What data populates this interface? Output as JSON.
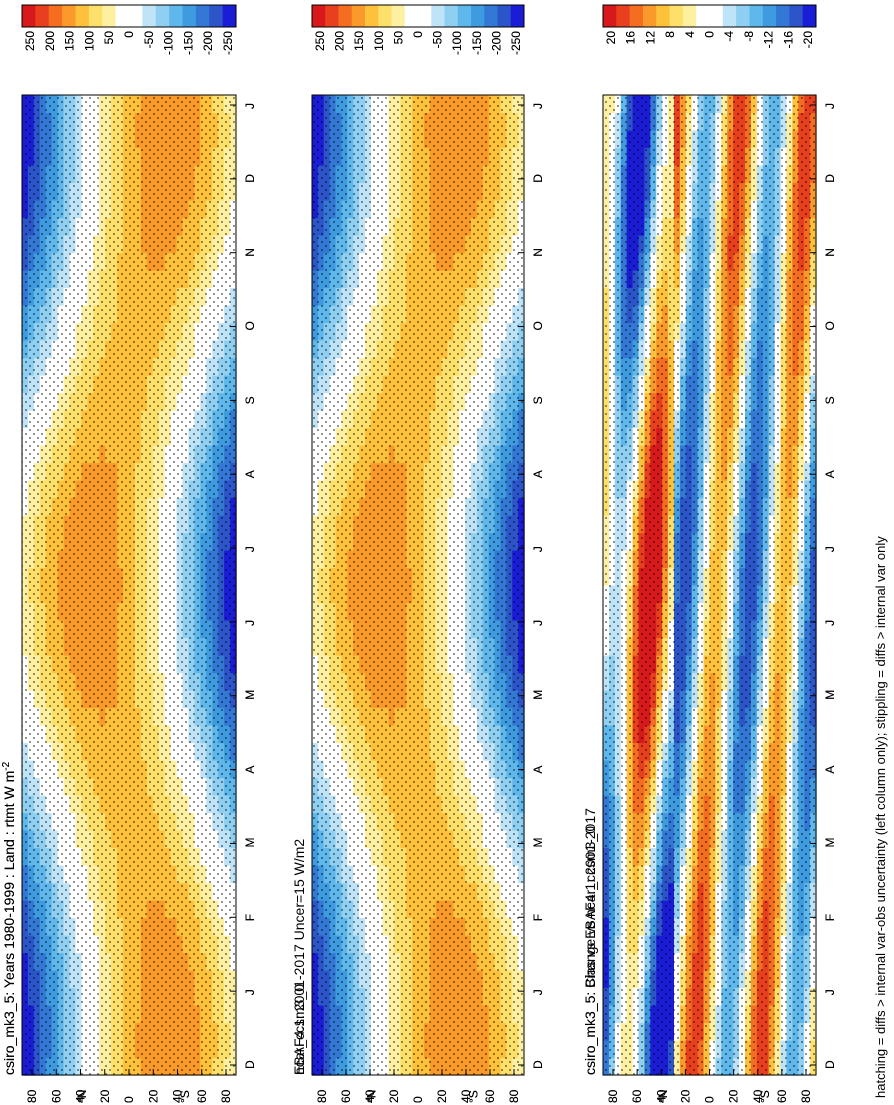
{
  "footnote": "hatching = diffs > internal var-obs uncertainty (left column only); stippling = diffs > internal var only",
  "chart_data": [
    {
      "id": "p1",
      "type": "heatmap",
      "title": "csiro_mk3_5: Years 1980-1999 : Land : rtmt W m",
      "title_sup": "-2",
      "x": [
        "D",
        "J",
        "F",
        "M",
        "A",
        "M",
        "J",
        "J",
        "A",
        "S",
        "O",
        "N",
        "D",
        "J"
      ],
      "y": [
        "80",
        "60",
        "40",
        "20",
        "0",
        "20",
        "40",
        "60",
        "80"
      ],
      "y_unit": "°N",
      "y_unit_s": "°S",
      "stippling": true,
      "hatching": true,
      "colorbar": [
        "250",
        "200",
        "150",
        "100",
        "50",
        "0",
        "-50",
        "-100",
        "-150",
        "-200",
        "-250"
      ]
    },
    {
      "id": "p2",
      "type": "heatmap",
      "title": "csiro_mk3_5: Years 1980-1999 : Land : rtmt W m",
      "title_sup": "-2",
      "x": [
        "D",
        "J",
        "F",
        "M",
        "A",
        "M",
        "J",
        "J",
        "A",
        "S",
        "O",
        "N",
        "D",
        "J"
      ],
      "y": [
        "80",
        "60",
        "40",
        "20",
        "0",
        "20",
        "40",
        "60",
        "80"
      ],
      "y_unit": "°N",
      "y_unit_s": "°S",
      "stippling": true,
      "hatching": false,
      "colorbar": [
        "250",
        "200",
        "150",
        "100",
        "50",
        "0",
        "-50",
        "-100",
        "-150",
        "-200",
        "-250"
      ]
    },
    {
      "id": "p3",
      "type": "heatmap",
      "title": "EBAF4.1: 2001-2017 Uncer=15 W/m2",
      "title_sup": "",
      "x": [
        "D",
        "J",
        "F",
        "M",
        "A",
        "M",
        "J",
        "J",
        "A",
        "S",
        "O",
        "N",
        "D",
        "J"
      ],
      "y": [
        "80",
        "60",
        "40",
        "20",
        "0",
        "20",
        "40",
        "60",
        "80"
      ],
      "y_unit": "°N",
      "y_unit_s": "°S",
      "stippling": true,
      "hatching": true,
      "colorbar": [
        "250",
        "200",
        "150",
        "100",
        "50",
        "0",
        "-50",
        "-100",
        "-150",
        "-200",
        "-250"
      ]
    },
    {
      "id": "p4",
      "type": "heatmap",
      "title": "ncar_ccsm3_0",
      "title_sup": "",
      "x": [
        "D",
        "J",
        "F",
        "M",
        "A",
        "M",
        "J",
        "J",
        "A",
        "S",
        "O",
        "N",
        "D",
        "J"
      ],
      "y": [
        "80",
        "60",
        "40",
        "20",
        "0",
        "20",
        "40",
        "60",
        "80"
      ],
      "y_unit": "°N",
      "y_unit_s": "°S",
      "stippling": true,
      "hatching": false,
      "colorbar": [
        "250",
        "200",
        "150",
        "100",
        "50",
        "0",
        "-50",
        "-100",
        "-150",
        "-200",
        "-250"
      ]
    },
    {
      "id": "p5",
      "type": "heatmap",
      "title": "csiro_mk3_5: Bias vs EBAF4.1: 2001-2017",
      "title_sup": "",
      "x": [
        "D",
        "J",
        "F",
        "M",
        "A",
        "M",
        "J",
        "J",
        "A",
        "S",
        "O",
        "N",
        "D",
        "J"
      ],
      "y": [
        "80",
        "60",
        "40",
        "20",
        "0",
        "20",
        "40",
        "60",
        "80"
      ],
      "y_unit": "°N",
      "y_unit_s": "°S",
      "stippling": true,
      "hatching": true,
      "colorbar": [
        "20",
        "16",
        "12",
        "8",
        "4",
        "0",
        "-4",
        "-8",
        "-12",
        "-16",
        "-20"
      ]
    },
    {
      "id": "p6",
      "type": "heatmap",
      "title": "csiro_mk3_5: Change vs ncar_ccsm3_0",
      "title_sup": "",
      "x": [
        "D",
        "J",
        "F",
        "M",
        "A",
        "M",
        "J",
        "J",
        "A",
        "S",
        "O",
        "N",
        "D",
        "J"
      ],
      "y": [
        "80",
        "60",
        "40",
        "20",
        "0",
        "20",
        "40",
        "60",
        "80"
      ],
      "y_unit": "°N",
      "y_unit_s": "°S",
      "stippling": true,
      "hatching": false,
      "colorbar": [
        "20",
        "16",
        "12",
        "8",
        "4",
        "0",
        "-4",
        "-8",
        "-12",
        "-16",
        "-20"
      ]
    }
  ],
  "colors": {
    "palette": [
      "#d7191c",
      "#e8401f",
      "#f46d21",
      "#f99a2b",
      "#fdc13b",
      "#fde06a",
      "#fdf0a0",
      "#ffffff",
      "#ffffff",
      "#bfe4f7",
      "#8fd0f2",
      "#5fb8ec",
      "#3f9be0",
      "#3478d6",
      "#2c55c9",
      "#1b1dd6"
    ]
  }
}
